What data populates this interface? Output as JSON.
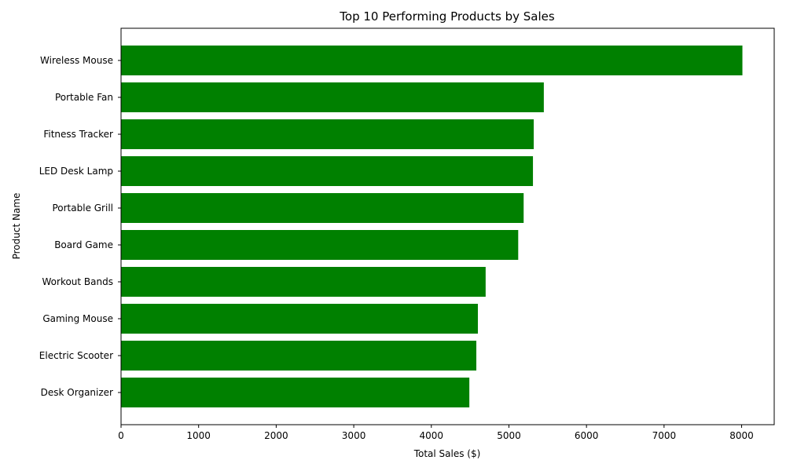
{
  "chart_data": {
    "type": "bar",
    "orientation": "horizontal",
    "title": "Top 10 Performing Products by Sales",
    "xlabel": "Total Sales ($)",
    "ylabel": "Product Name",
    "xlim": [
      0,
      8420
    ],
    "xticks": [
      0,
      1000,
      2000,
      3000,
      4000,
      5000,
      6000,
      7000,
      8000
    ],
    "grid": false,
    "legend": "none",
    "bar_color": "#008000",
    "categories": [
      "Wireless Mouse",
      "Portable Fan",
      "Fitness Tracker",
      "LED Desk Lamp",
      "Portable Grill",
      "Board Game",
      "Workout Bands",
      "Gaming Mouse",
      "Electric Scooter",
      "Desk Organizer"
    ],
    "values": [
      8010,
      5450,
      5320,
      5310,
      5190,
      5120,
      4700,
      4600,
      4580,
      4490
    ]
  }
}
